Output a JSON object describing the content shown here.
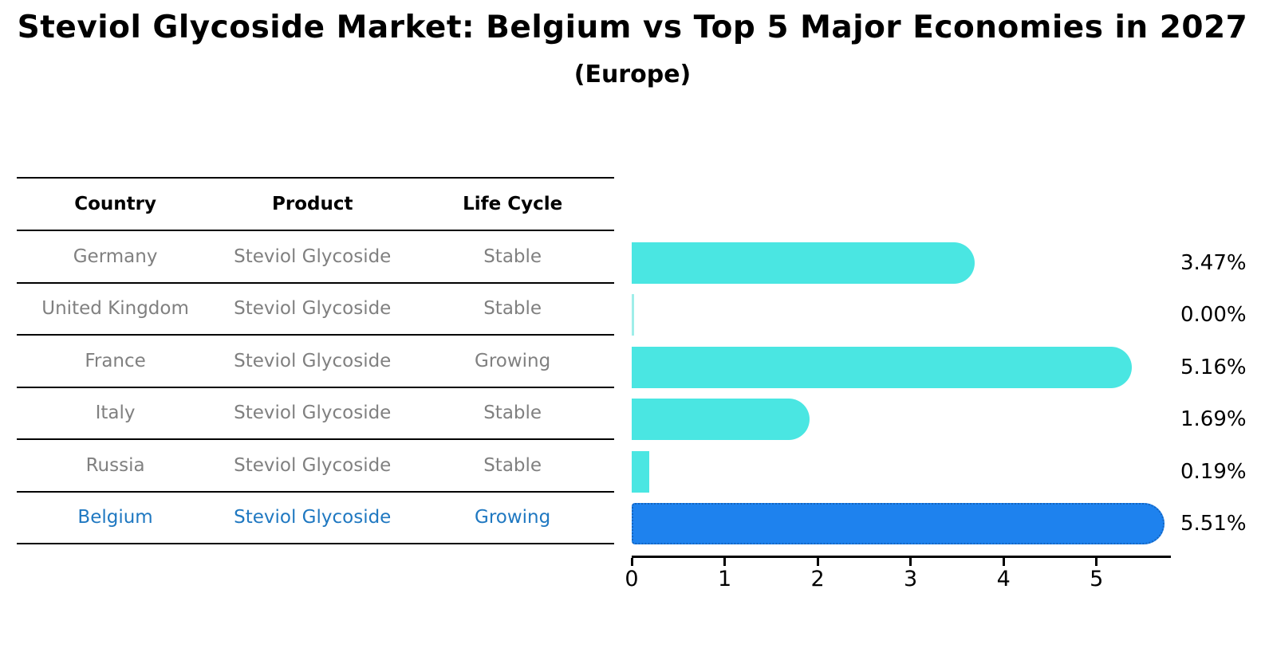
{
  "header": {
    "title": "Steviol Glycoside Market: Belgium vs Top 5 Major Economies in 2027",
    "subtitle": "(Europe)"
  },
  "table": {
    "columns": [
      "Country",
      "Product",
      "Life Cycle"
    ],
    "rows": [
      {
        "country": "Germany",
        "product": "Steviol Glycoside",
        "life_cycle": "Stable",
        "highlight": false
      },
      {
        "country": "United Kingdom",
        "product": "Steviol Glycoside",
        "life_cycle": "Stable",
        "highlight": false
      },
      {
        "country": "France",
        "product": "Steviol Glycoside",
        "life_cycle": "Growing",
        "highlight": false
      },
      {
        "country": "Italy",
        "product": "Steviol Glycoside",
        "life_cycle": "Stable",
        "highlight": false
      },
      {
        "country": "Russia",
        "product": "Steviol Glycoside",
        "life_cycle": "Stable",
        "highlight": false
      },
      {
        "country": "Belgium",
        "product": "Steviol Glycoside",
        "life_cycle": "Growing",
        "highlight": true
      }
    ],
    "highlight_text_color": "#1f78c1",
    "body_text_color": "#808080"
  },
  "chart_data": {
    "type": "bar",
    "orientation": "horizontal",
    "title": "Steviol Glycoside Market: Belgium vs Top 5 Major Economies in 2027",
    "subtitle": "(Europe)",
    "categories": [
      "Germany",
      "United Kingdom",
      "France",
      "Italy",
      "Russia",
      "Belgium"
    ],
    "values": [
      3.47,
      0.0,
      5.16,
      1.69,
      0.19,
      5.51
    ],
    "value_labels": [
      "3.47%",
      "0.00%",
      "5.16%",
      "1.69%",
      "0.19%",
      "5.51%"
    ],
    "xlabel": "",
    "ylabel": "",
    "xlim": [
      0,
      5.8
    ],
    "x_ticks": [
      "0",
      "1",
      "2",
      "3",
      "4",
      "5"
    ],
    "grid": false,
    "legend": false,
    "highlight_index": 5,
    "bar_color": "#4ae6e2",
    "zero_bar_color": "#9feee9",
    "highlight_bar_color": "#1e82ee",
    "highlight_bar_border_color": "#1565c0"
  }
}
